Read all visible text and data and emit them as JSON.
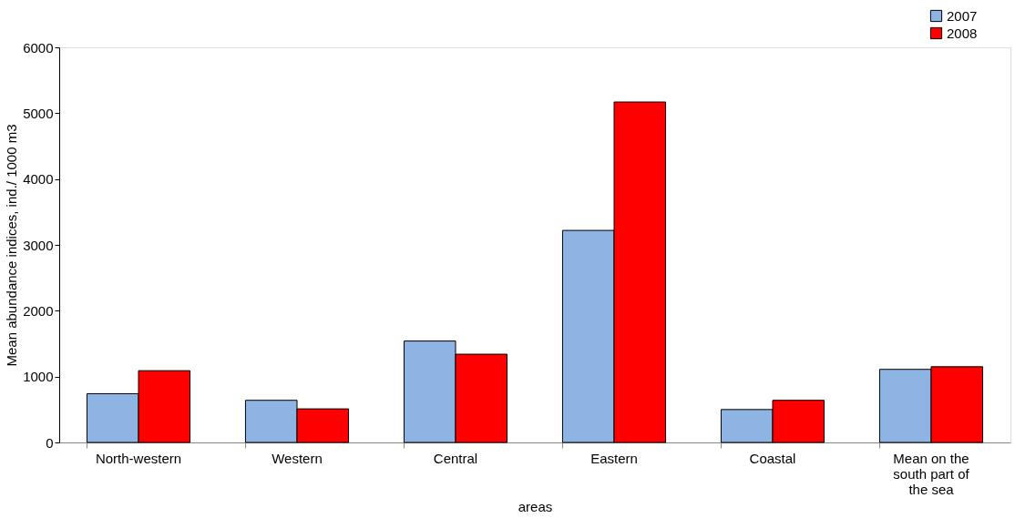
{
  "chart_data": {
    "type": "bar",
    "xlabel": "areas",
    "ylabel": "Mean abundance indices, ind./ 1000 m3",
    "categories": [
      "North-western",
      "Western",
      "Central",
      "Eastern",
      "Coastal",
      "Mean on the south part of the sea"
    ],
    "series": [
      {
        "name": "2007",
        "color": "#8eb4e3",
        "values": [
          740,
          640,
          1540,
          3220,
          500,
          1110
        ]
      },
      {
        "name": "2008",
        "color": "#ff0000",
        "values": [
          1090,
          510,
          1340,
          5170,
          640,
          1150
        ]
      }
    ],
    "ylim": [
      0,
      6000
    ],
    "yticks": [
      0,
      1000,
      2000,
      3000,
      4000,
      5000,
      6000
    ],
    "grid": false,
    "legend": "top right"
  }
}
